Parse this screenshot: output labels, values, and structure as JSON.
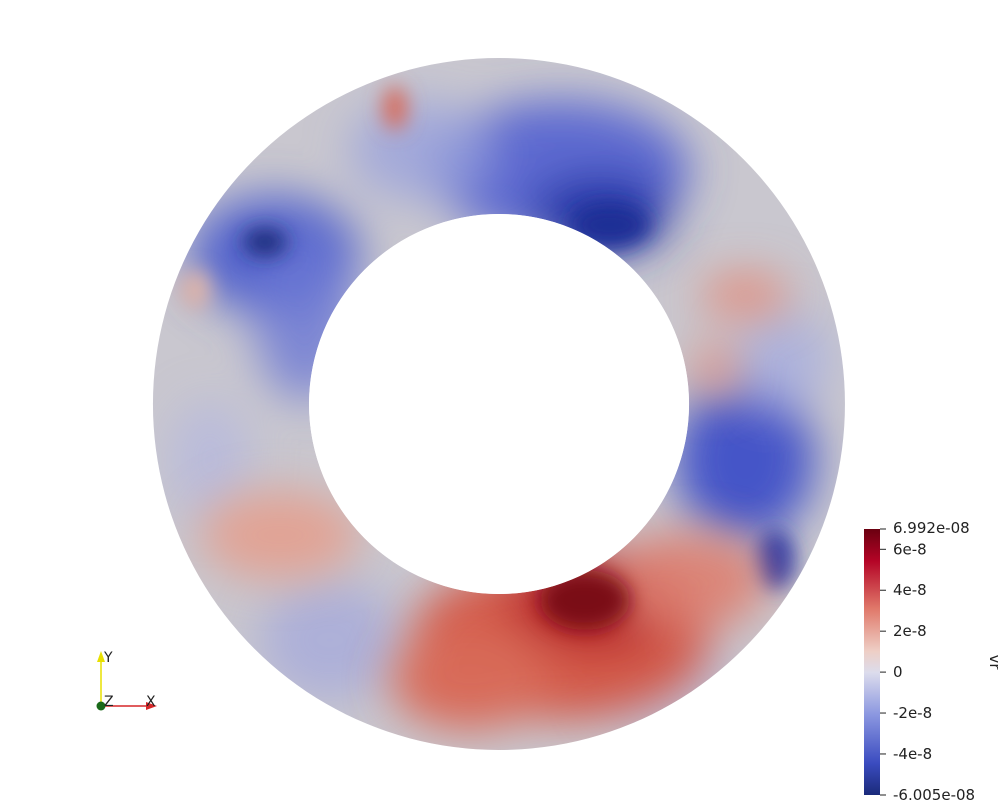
{
  "scalar_field": {
    "name": "vr",
    "range": [
      -6.005e-08,
      6.992e-08
    ]
  },
  "colorbar": {
    "max_label": "6.992e-08",
    "min_label": "-6.005e-08",
    "ticks": [
      {
        "value": 6e-08,
        "label": "6e-8"
      },
      {
        "value": 4e-08,
        "label": "4e-8"
      },
      {
        "value": 2e-08,
        "label": "2e-8"
      },
      {
        "value": 0,
        "label": "0"
      },
      {
        "value": -2e-08,
        "label": "-2e-8"
      },
      {
        "value": -4e-08,
        "label": "-4e-8"
      }
    ],
    "title": "vr",
    "colormap": "cool-to-warm",
    "colors": {
      "low": "#3b4cc0",
      "mid": "#dddddd",
      "high": "#b40426",
      "extreme_high": "#6a0010",
      "extreme_low": "#1a2a7a"
    }
  },
  "orientation_axes": {
    "y_label": "Y",
    "z_label": "Z",
    "x_label": "X",
    "colors": {
      "x": "#d62728",
      "y": "#e8e000",
      "z": "#1a8a1a"
    }
  },
  "annulus": {
    "base_color": "#c6c6cc",
    "background": "#ffffff"
  }
}
